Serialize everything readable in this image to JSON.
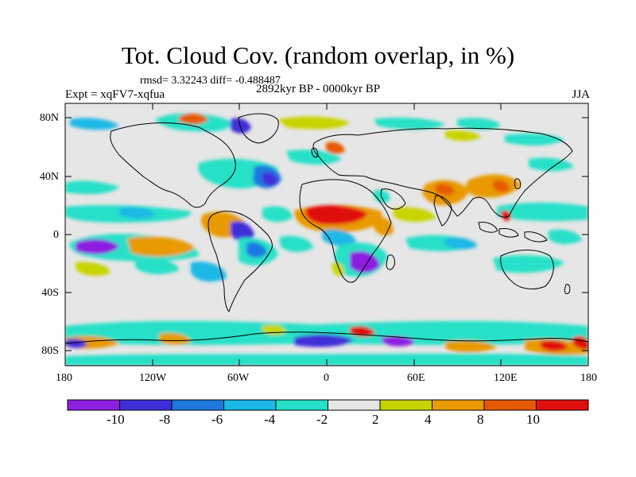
{
  "header": {
    "title": "Tot. Cloud Cov. (random overlap, in %)",
    "stats": "rmsd= 3.32243  diff= -0.488487",
    "period": "2892kyr BP - 0000kyr BP",
    "experiment": "Expt = xqFV7-xqfua",
    "season": "JJA"
  },
  "axes": {
    "lat_labels": [
      "80N",
      "40N",
      "0",
      "40S",
      "80S"
    ],
    "lon_labels": [
      "180",
      "120W",
      "60W",
      "0",
      "60E",
      "120E",
      "180"
    ]
  },
  "colorbar": {
    "labels": [
      "-10",
      "-8",
      "-6",
      "-4",
      "-2",
      "2",
      "4",
      "8",
      "10"
    ],
    "colors": [
      "#8c1fe0",
      "#3f2fd8",
      "#1f78e0",
      "#1ab8e6",
      "#26e0c7",
      "#e6e6e6",
      "#c8d400",
      "#e89a00",
      "#e65a00",
      "#e01010"
    ]
  },
  "map": {
    "background_color": "#e6e6e6",
    "coastline_color": "#000000"
  }
}
